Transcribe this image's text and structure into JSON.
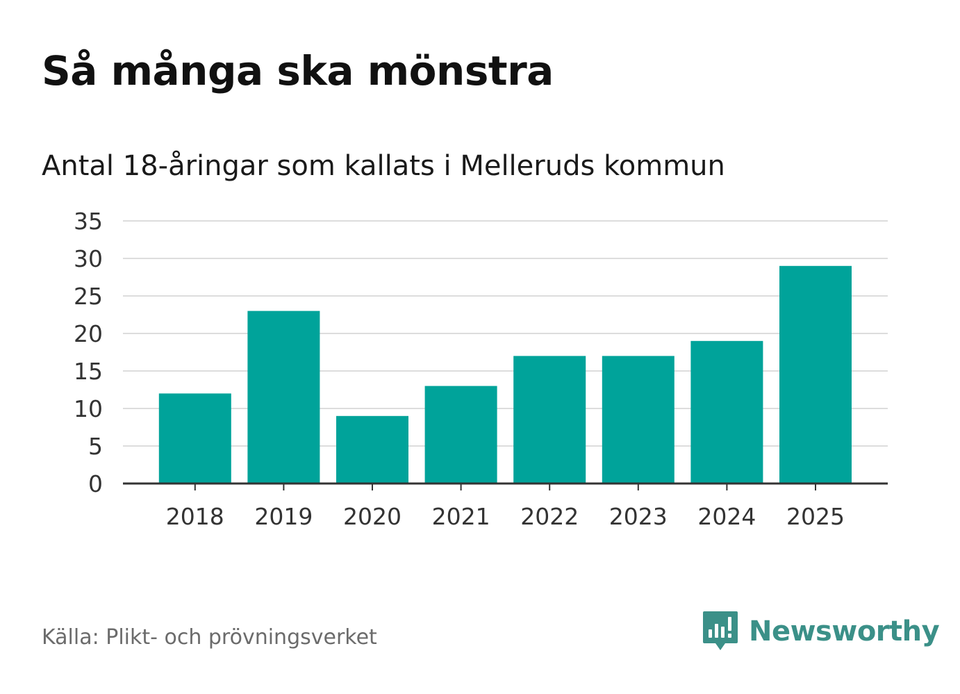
{
  "title": "Så många ska mönstra",
  "subtitle": "Antal 18-åringar som kallats i Melleruds kommun",
  "source": "Källa: Plikt- och prövningsverket",
  "brand": {
    "name": "Newsworthy",
    "icon": "newsworthy-logo-icon",
    "color": "#3b9088"
  },
  "colors": {
    "bar": "#00a39a",
    "grid": "#dddddd",
    "axis": "#333333"
  },
  "chart_data": {
    "type": "bar",
    "title": "Så många ska mönstra",
    "subtitle": "Antal 18-åringar som kallats i Melleruds kommun",
    "categories": [
      "2018",
      "2019",
      "2020",
      "2021",
      "2022",
      "2023",
      "2024",
      "2025"
    ],
    "values": [
      12,
      23,
      9,
      13,
      17,
      17,
      19,
      29
    ],
    "xlabel": "",
    "ylabel": "",
    "ylim": [
      0,
      35
    ],
    "yticks": [
      "0",
      "5",
      "10",
      "15",
      "20",
      "25",
      "30",
      "35"
    ],
    "grid": true,
    "legend": "none"
  }
}
